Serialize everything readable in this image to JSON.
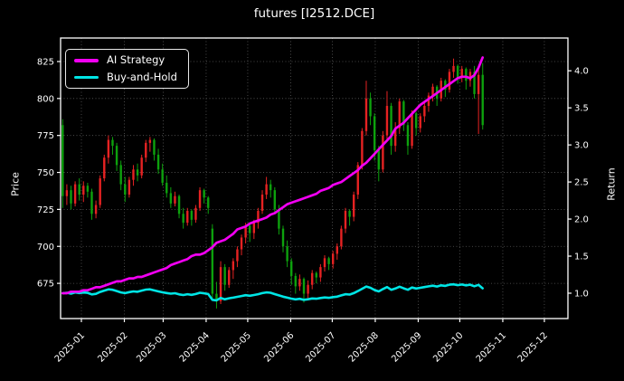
{
  "window": {
    "title": "futures [I2512.DCE]"
  },
  "chart_data": {
    "type": "candlestick",
    "title": "futures [I2512.DCE]",
    "grid": "dotted gray, on",
    "background": "#000000",
    "left_axis": {
      "label": "Price",
      "ticks": [
        825,
        800,
        775,
        750,
        725,
        700,
        675
      ],
      "ylim": [
        651.2,
        840.9
      ]
    },
    "right_axis": {
      "label": "Return",
      "ticks": [
        4.0,
        3.5,
        3.0,
        2.5,
        2.0,
        1.5,
        1.0
      ],
      "ylim": [
        0.658,
        4.442
      ]
    },
    "x_axis": {
      "tick_labels": [
        "2025-01",
        "2025-02",
        "2025-03",
        "2025-04",
        "2025-05",
        "2025-06",
        "2025-07",
        "2025-08",
        "2025-09",
        "2025-10",
        "2025-11",
        "2025-12"
      ],
      "tick_days": [
        15,
        46,
        74,
        105,
        135,
        166,
        196,
        227,
        258,
        288,
        319,
        349
      ],
      "xlim_days": [
        0,
        366
      ]
    },
    "legend": {
      "position": "upper left",
      "entries": [
        {
          "label": "AI Strategy",
          "color": "#f200f2"
        },
        {
          "label": "Buy-and-Hold",
          "color": "#00e5e5"
        }
      ]
    },
    "colors": {
      "up_candle": "#e62222",
      "down_candle": "#0da10d",
      "grid": "#5a5a5a",
      "text": "#ffffff",
      "spine": "#ffffff"
    },
    "candles_format": [
      "day",
      "open",
      "high",
      "low",
      "close"
    ],
    "candles": [
      [
        1.5,
        782,
        786,
        726,
        734
      ],
      [
        4.5,
        734,
        742,
        728,
        738
      ],
      [
        7.5,
        738,
        741,
        725,
        729
      ],
      [
        10.5,
        729,
        744,
        727,
        742
      ],
      [
        13.5,
        742,
        746,
        731,
        735
      ],
      [
        16.5,
        735,
        744,
        730,
        741
      ],
      [
        19.5,
        741,
        743,
        733,
        737
      ],
      [
        22.5,
        737,
        739,
        718,
        722
      ],
      [
        25.5,
        722,
        731,
        719,
        728
      ],
      [
        28.5,
        728,
        748,
        726,
        746
      ],
      [
        31.5,
        746,
        762,
        744,
        760
      ],
      [
        34.5,
        760,
        775,
        756,
        772
      ],
      [
        37.5,
        772,
        774,
        762,
        768
      ],
      [
        40.5,
        768,
        770,
        751,
        755
      ],
      [
        43.5,
        755,
        758,
        738,
        742
      ],
      [
        46.5,
        742,
        747,
        730,
        735
      ],
      [
        49.5,
        735,
        747,
        733,
        745
      ],
      [
        52.5,
        745,
        755,
        741,
        752
      ],
      [
        55.5,
        752,
        756,
        744,
        748
      ],
      [
        58.5,
        748,
        762,
        746,
        760
      ],
      [
        61.5,
        760,
        772,
        757,
        770
      ],
      [
        64.5,
        770,
        774,
        764,
        772
      ],
      [
        67.5,
        772,
        773,
        758,
        762
      ],
      [
        70.5,
        762,
        766,
        749,
        752
      ],
      [
        73.5,
        752,
        756,
        741,
        743
      ],
      [
        76.5,
        743,
        748,
        733,
        736
      ],
      [
        79.5,
        736,
        740,
        726,
        729
      ],
      [
        82.5,
        729,
        737,
        727,
        734
      ],
      [
        85.5,
        734,
        735,
        719,
        722
      ],
      [
        88.5,
        722,
        726,
        712,
        716
      ],
      [
        91.5,
        716,
        726,
        714,
        724
      ],
      [
        94.5,
        724,
        725,
        714,
        718
      ],
      [
        97.5,
        718,
        728,
        716,
        726
      ],
      [
        100.5,
        726,
        740,
        724,
        738
      ],
      [
        103.5,
        738,
        739,
        729,
        733
      ],
      [
        106.5,
        733,
        734,
        722,
        726
      ],
      [
        109.5,
        712,
        715,
        664,
        668
      ],
      [
        112.5,
        668,
        676,
        658,
        663
      ],
      [
        115.5,
        663,
        690,
        661,
        686
      ],
      [
        118.5,
        686,
        688,
        670,
        674
      ],
      [
        121.5,
        674,
        686,
        672,
        684
      ],
      [
        124.5,
        684,
        692,
        678,
        690
      ],
      [
        127.5,
        690,
        700,
        686,
        698
      ],
      [
        130.5,
        698,
        708,
        694,
        706
      ],
      [
        133.5,
        706,
        716,
        702,
        714
      ],
      [
        136.5,
        714,
        715,
        703,
        709
      ],
      [
        139.5,
        709,
        718,
        705,
        716
      ],
      [
        142.5,
        716,
        726,
        712,
        724
      ],
      [
        145.5,
        724,
        738,
        722,
        735
      ],
      [
        148.5,
        735,
        747,
        732,
        742
      ],
      [
        151.5,
        742,
        745,
        733,
        738
      ],
      [
        154.5,
        738,
        740,
        722,
        725
      ],
      [
        157.5,
        725,
        728,
        708,
        712
      ],
      [
        160.5,
        712,
        714,
        696,
        700
      ],
      [
        163.5,
        700,
        704,
        686,
        690
      ],
      [
        166.5,
        690,
        692,
        674,
        680
      ],
      [
        169.5,
        680,
        682,
        668,
        673
      ],
      [
        172.5,
        673,
        681,
        670,
        678
      ],
      [
        175.5,
        678,
        679,
        662,
        668
      ],
      [
        178.5,
        668,
        677,
        665,
        674
      ],
      [
        181.5,
        674,
        684,
        671,
        682
      ],
      [
        184.5,
        682,
        683,
        675,
        679
      ],
      [
        187.5,
        679,
        688,
        676,
        686
      ],
      [
        190.5,
        686,
        694,
        683,
        692
      ],
      [
        193.5,
        692,
        693,
        684,
        688
      ],
      [
        196.5,
        688,
        697,
        685,
        695
      ],
      [
        199.5,
        695,
        702,
        691,
        700
      ],
      [
        202.5,
        700,
        714,
        698,
        712
      ],
      [
        205.5,
        712,
        726,
        709,
        724
      ],
      [
        208.5,
        724,
        725,
        714,
        720
      ],
      [
        211.5,
        720,
        737,
        717,
        735
      ],
      [
        214.5,
        735,
        757,
        732,
        755
      ],
      [
        217.5,
        755,
        780,
        752,
        778
      ],
      [
        220.5,
        778,
        812,
        775,
        800
      ],
      [
        223.5,
        800,
        804,
        782,
        788
      ],
      [
        226.5,
        788,
        790,
        758,
        765
      ],
      [
        229.5,
        765,
        768,
        744,
        752
      ],
      [
        232.5,
        752,
        778,
        750,
        775
      ],
      [
        235.5,
        775,
        805,
        772,
        795
      ],
      [
        238.5,
        795,
        797,
        762,
        768
      ],
      [
        241.5,
        768,
        784,
        764,
        780
      ],
      [
        244.5,
        780,
        800,
        776,
        798
      ],
      [
        247.5,
        798,
        799,
        778,
        782
      ],
      [
        250.5,
        782,
        784,
        762,
        768
      ],
      [
        253.5,
        768,
        792,
        766,
        790
      ],
      [
        256.5,
        790,
        791,
        775,
        780
      ],
      [
        259.5,
        780,
        790,
        777,
        788
      ],
      [
        262.5,
        788,
        797,
        784,
        795
      ],
      [
        265.5,
        795,
        804,
        791,
        802
      ],
      [
        268.5,
        802,
        810,
        798,
        808
      ],
      [
        271.5,
        808,
        809,
        795,
        800
      ],
      [
        274.5,
        800,
        814,
        798,
        812
      ],
      [
        277.5,
        812,
        813,
        801,
        806
      ],
      [
        280.5,
        806,
        820,
        804,
        818
      ],
      [
        283.5,
        818,
        827,
        814,
        822
      ],
      [
        286.5,
        822,
        823,
        810,
        814
      ],
      [
        289.5,
        814,
        822,
        811,
        820
      ],
      [
        292.5,
        820,
        821,
        806,
        812
      ],
      [
        295.5,
        812,
        820,
        808,
        818
      ],
      [
        298.5,
        818,
        822,
        800,
        803
      ],
      [
        301.5,
        803,
        820,
        776,
        816
      ],
      [
        304.5,
        816,
        824,
        779,
        782
      ]
    ],
    "series": [
      {
        "name": "AI Strategy",
        "axis": "return",
        "color": "#f200f2",
        "points": [
          [
            1.5,
            1.0
          ],
          [
            11,
            1.02
          ],
          [
            22,
            1.05
          ],
          [
            32,
            1.11
          ],
          [
            42,
            1.16
          ],
          [
            54,
            1.21
          ],
          [
            66,
            1.26
          ],
          [
            77,
            1.35
          ],
          [
            87,
            1.43
          ],
          [
            97,
            1.51
          ],
          [
            103,
            1.54
          ],
          [
            106,
            1.57
          ],
          [
            109.5,
            1.62
          ],
          [
            112.5,
            1.67
          ],
          [
            117,
            1.7
          ],
          [
            128,
            1.86
          ],
          [
            137,
            1.94
          ],
          [
            147,
            2.01
          ],
          [
            157,
            2.11
          ],
          [
            162,
            2.18
          ],
          [
            172,
            2.26
          ],
          [
            182,
            2.32
          ],
          [
            195,
            2.44
          ],
          [
            204,
            2.52
          ],
          [
            211,
            2.61
          ],
          [
            217,
            2.71
          ],
          [
            220.5,
            2.76
          ],
          [
            223,
            2.81
          ],
          [
            229,
            2.93
          ],
          [
            235,
            3.06
          ],
          [
            238,
            3.1
          ],
          [
            241,
            3.22
          ],
          [
            247,
            3.3
          ],
          [
            253,
            3.4
          ],
          [
            261,
            3.57
          ],
          [
            268,
            3.66
          ],
          [
            275,
            3.74
          ],
          [
            280,
            3.81
          ],
          [
            287,
            3.9
          ],
          [
            292,
            3.92
          ],
          [
            295.5,
            3.9
          ],
          [
            298.5,
            3.93
          ],
          [
            301.5,
            4.03
          ],
          [
            304.5,
            4.18
          ]
        ]
      },
      {
        "name": "Buy-and-Hold",
        "axis": "return",
        "color": "#00e5e5",
        "derivation": "close divided by first close (734)"
      }
    ]
  }
}
